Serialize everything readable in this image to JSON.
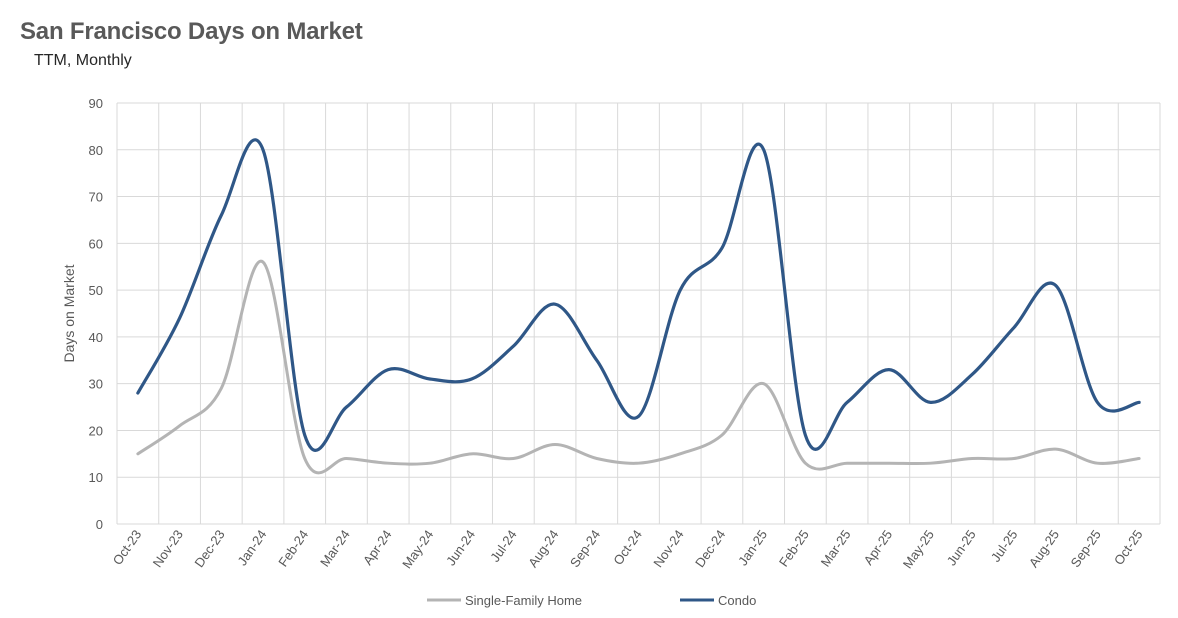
{
  "title": "San Francisco Days on Market",
  "subtitle": "TTM, Monthly",
  "colors": {
    "single_family": "#b4b4b4",
    "condo": "#2f5787",
    "grid": "#d9d9d9",
    "text": "#595959"
  },
  "chart_data": {
    "type": "line",
    "title": "San Francisco Days on Market",
    "subtitle": "TTM, Monthly",
    "xlabel": "",
    "ylabel": "Days on Market",
    "ylim": [
      0,
      90
    ],
    "yticks": [
      0,
      10,
      20,
      30,
      40,
      50,
      60,
      70,
      80,
      90
    ],
    "grid": true,
    "legend_position": "bottom",
    "categories": [
      "Oct-23",
      "Nov-23",
      "Dec-23",
      "Jan-24",
      "Feb-24",
      "Mar-24",
      "Apr-24",
      "May-24",
      "Jun-24",
      "Jul-24",
      "Aug-24",
      "Sep-24",
      "Oct-24",
      "Nov-24",
      "Dec-24",
      "Jan-25",
      "Feb-25",
      "Mar-25",
      "Apr-25",
      "May-25",
      "Jun-25",
      "Jul-25",
      "Aug-25",
      "Sep-25",
      "Oct-25"
    ],
    "series": [
      {
        "name": "Single-Family Home",
        "color": "#b4b4b4",
        "values": [
          15,
          21,
          29,
          56,
          14,
          14,
          13,
          13,
          15,
          14,
          17,
          14,
          13,
          15,
          19,
          30,
          13,
          13,
          13,
          13,
          14,
          14,
          16,
          13,
          14
        ]
      },
      {
        "name": "Condo",
        "color": "#2f5787",
        "values": [
          28,
          44,
          66,
          80,
          19,
          25,
          33,
          31,
          31,
          38,
          47,
          35,
          23,
          50,
          59,
          80,
          19,
          26,
          33,
          26,
          32,
          42,
          51,
          26,
          26
        ]
      }
    ]
  }
}
